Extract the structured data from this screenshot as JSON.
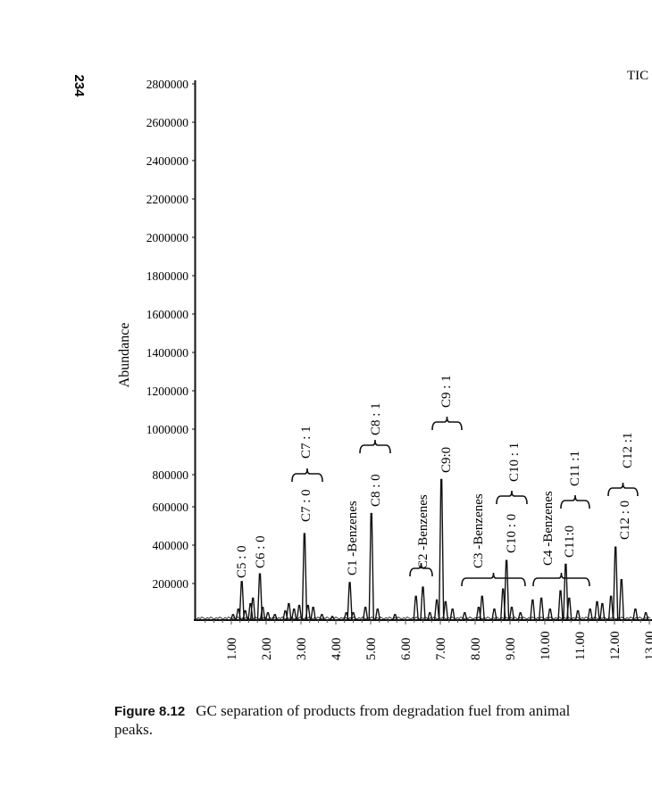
{
  "page": {
    "page_number": "234",
    "caption_label": "Figure 8.12",
    "caption_text": "GC separation of products from degradation fuel from animal",
    "caption_text_line2": "peaks."
  },
  "chart_data": {
    "type": "line",
    "title": "",
    "corner_label": "TIC",
    "xlabel": "",
    "ylabel": "Abundance",
    "xlim": [
      0,
      13.3
    ],
    "ylim": [
      0,
      2800000
    ],
    "x_ticks": [
      "1.00",
      "2.00",
      "3.00",
      "4.00",
      "5.00",
      "6.00",
      "7.00",
      "8.00",
      "9.00",
      "10.00",
      "11.00",
      "12.00",
      "13.00"
    ],
    "y_ticks": [
      "2800000",
      "2600000",
      "2400000",
      "2200000",
      "2000000",
      "1800000",
      "1600000",
      "1400000",
      "1200000",
      "1000000",
      "800000",
      "600000",
      "400000",
      "200000"
    ],
    "grid": false,
    "series": [
      {
        "peaks": [
          [
            1.05,
            30000
          ],
          [
            1.2,
            60000
          ],
          [
            1.3,
            210000
          ],
          [
            1.4,
            50000
          ],
          [
            1.55,
            90000
          ],
          [
            1.62,
            120000
          ],
          [
            1.82,
            250000
          ],
          [
            1.9,
            70000
          ],
          [
            2.05,
            40000
          ],
          [
            2.25,
            30000
          ],
          [
            2.55,
            50000
          ],
          [
            2.65,
            90000
          ],
          [
            2.8,
            60000
          ],
          [
            2.95,
            80000
          ],
          [
            3.1,
            460000
          ],
          [
            3.2,
            80000
          ],
          [
            3.35,
            70000
          ],
          [
            3.6,
            30000
          ],
          [
            3.9,
            20000
          ],
          [
            4.3,
            40000
          ],
          [
            4.4,
            205000
          ],
          [
            4.5,
            40000
          ],
          [
            4.85,
            70000
          ],
          [
            5.02,
            565000
          ],
          [
            5.2,
            60000
          ],
          [
            5.7,
            30000
          ],
          [
            6.3,
            130000
          ],
          [
            6.5,
            180000
          ],
          [
            6.7,
            40000
          ],
          [
            6.9,
            110000
          ],
          [
            7.03,
            770000
          ],
          [
            7.15,
            100000
          ],
          [
            7.35,
            60000
          ],
          [
            7.7,
            40000
          ],
          [
            8.1,
            70000
          ],
          [
            8.2,
            130000
          ],
          [
            8.55,
            60000
          ],
          [
            8.8,
            170000
          ],
          [
            8.9,
            320000
          ],
          [
            9.05,
            70000
          ],
          [
            9.3,
            40000
          ],
          [
            9.65,
            110000
          ],
          [
            9.9,
            120000
          ],
          [
            10.15,
            60000
          ],
          [
            10.45,
            160000
          ],
          [
            10.6,
            300000
          ],
          [
            10.7,
            120000
          ],
          [
            10.95,
            50000
          ],
          [
            11.3,
            60000
          ],
          [
            11.5,
            100000
          ],
          [
            11.65,
            90000
          ],
          [
            11.9,
            130000
          ],
          [
            12.03,
            390000
          ],
          [
            12.2,
            220000
          ],
          [
            12.6,
            60000
          ],
          [
            12.9,
            40000
          ]
        ]
      }
    ],
    "annotations": [
      {
        "text": "C5 : 0",
        "x": 1.3
      },
      {
        "text": "C6 : 0",
        "x": 1.82
      },
      {
        "text": "C7 : 0",
        "x": 3.1
      },
      {
        "text": "C7 : 1",
        "x": 3.1
      },
      {
        "text": "C1 -Benzenes",
        "x": 4.4
      },
      {
        "text": "C8 : 0",
        "x": 5.02
      },
      {
        "text": "C8 : 1",
        "x": 5.1
      },
      {
        "text": "C2 -Benzenes",
        "x": 6.5
      },
      {
        "text": "C9:0",
        "x": 7.03
      },
      {
        "text": "C9 : 1",
        "x": 7.1
      },
      {
        "text": "C3 -Benzenes",
        "x": 8.2
      },
      {
        "text": "C10 : 0",
        "x": 8.9
      },
      {
        "text": "C10 : 1",
        "x": 9.0
      },
      {
        "text": "C4 -Benzenes",
        "x": 10.0
      },
      {
        "text": "C11:0",
        "x": 10.6
      },
      {
        "text": "C11 :1",
        "x": 10.8
      },
      {
        "text": "C12 : 0",
        "x": 12.03
      },
      {
        "text": "C12 :1",
        "x": 12.1
      }
    ]
  }
}
